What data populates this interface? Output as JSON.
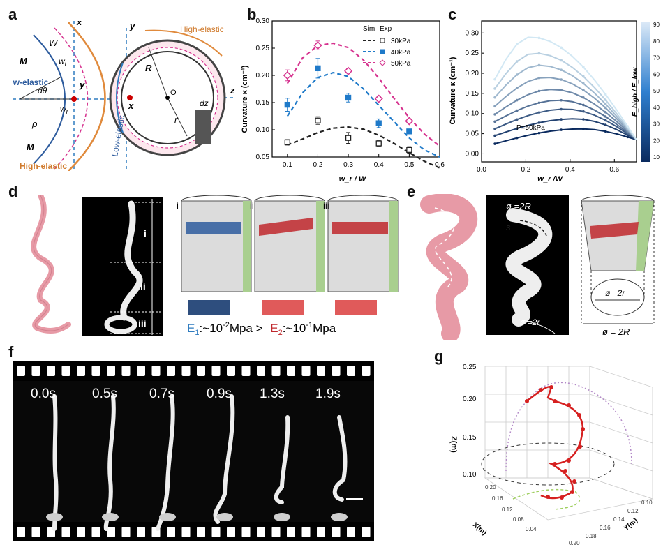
{
  "panel_labels": [
    "a",
    "b",
    "c",
    "d",
    "e",
    "f",
    "g"
  ],
  "panel_a": {
    "left": {
      "x": "x",
      "y": "y",
      "z": "z",
      "W": "W",
      "wl": "w",
      "wl_sub": "l",
      "wr": "w",
      "wr_sub": "r",
      "M_top": "M",
      "M_bottom": "M",
      "dtheta": "dθ",
      "rho": "ρ",
      "low": "Low-elastic",
      "high": "High-elastic"
    },
    "right": {
      "x": "x",
      "y": "y",
      "z": "z",
      "R": "R",
      "O": "O",
      "r": "r",
      "dz": "dz",
      "low": "Low-elastic",
      "high": "High-elastic"
    }
  },
  "panel_d": {
    "segments": [
      "i",
      "ii",
      "iii"
    ],
    "strips": [
      "i",
      "ii",
      "iii"
    ],
    "equation": {
      "e1": "E",
      "e1_sub": "1",
      "e1_val": ":~10",
      "e1_exp": "-2",
      "e1_unit": "Mpa >",
      "e2": "E",
      "e2_sub": "2",
      "e2_val": ":~10",
      "e2_exp": "-1",
      "e2_unit": "Mpa"
    }
  },
  "panel_e": {
    "s1": "s",
    "s2": "s",
    "d_top": "ø =2R",
    "d_bot": "ø =2r",
    "cone_inner": "ø =2r",
    "cone_outer": "ø = 2R"
  },
  "panel_f": {
    "times": [
      "0.0s",
      "0.5s",
      "0.7s",
      "0.9s",
      "1.3s",
      "1.9s"
    ]
  },
  "panel_g": {
    "zlabel": "Z(m)",
    "xlabel": "X(m)",
    "ylabel": "Y(m)",
    "zticks": [
      "0.25",
      "0.20",
      "0.15",
      "0.10"
    ],
    "xticks": [
      "0.20",
      "0.16",
      "0.12",
      "0.08",
      "0.04"
    ],
    "yticks": [
      "0.10",
      "0.12",
      "0.14",
      "0.16",
      "0.18",
      "0.20"
    ]
  },
  "chart_data": [
    {
      "type": "line",
      "panel": "b",
      "xlabel": "w_r / W",
      "ylabel": "Curvature κ (cm⁻¹)",
      "xlim": [
        0.05,
        0.6
      ],
      "ylim": [
        0.05,
        0.3
      ],
      "xticks": [
        0.1,
        0.2,
        0.3,
        0.4,
        0.5,
        0.6
      ],
      "yticks": [
        0.05,
        0.1,
        0.15,
        0.2,
        0.25,
        0.3
      ],
      "xtick_labels": [
        "0.1",
        "0.2",
        "0.3",
        "0.4",
        "0.5",
        "0.6"
      ],
      "ytick_labels": [
        "0.05",
        "0.10",
        "0.15",
        "0.20",
        "0.25",
        "0.30"
      ],
      "legend": {
        "sim": "Sim",
        "exp": "Exp",
        "position": "top-right"
      },
      "series": [
        {
          "name": "30kPa",
          "color": "#222222",
          "marker": "square-open",
          "sim_x": [
            0.1,
            0.15,
            0.2,
            0.25,
            0.3,
            0.35,
            0.4,
            0.45,
            0.5,
            0.55,
            0.6
          ],
          "sim_y": [
            0.072,
            0.083,
            0.095,
            0.103,
            0.105,
            0.101,
            0.09,
            0.075,
            0.058,
            0.042,
            0.03
          ],
          "exp_x": [
            0.1,
            0.2,
            0.3,
            0.4,
            0.5
          ],
          "exp_y": [
            0.077,
            0.117,
            0.085,
            0.075,
            0.063
          ],
          "err": [
            0.005,
            0.007,
            0.01,
            0.005,
            0.006
          ]
        },
        {
          "name": "40kPa",
          "color": "#1f7ac9",
          "marker": "square-filled",
          "sim_x": [
            0.1,
            0.15,
            0.2,
            0.25,
            0.3,
            0.35,
            0.4,
            0.45,
            0.5,
            0.55,
            0.6
          ],
          "sim_y": [
            0.125,
            0.168,
            0.196,
            0.205,
            0.198,
            0.175,
            0.145,
            0.115,
            0.085,
            0.063,
            0.05
          ],
          "exp_x": [
            0.1,
            0.2,
            0.3,
            0.4,
            0.5
          ],
          "exp_y": [
            0.146,
            0.213,
            0.159,
            0.112,
            0.097
          ],
          "err": [
            0.012,
            0.018,
            0.008,
            0.008,
            0.004
          ]
        },
        {
          "name": "50kPa",
          "color": "#d6338f",
          "marker": "diamond-open",
          "sim_x": [
            0.1,
            0.15,
            0.2,
            0.25,
            0.3,
            0.35,
            0.4,
            0.45,
            0.5,
            0.55,
            0.6
          ],
          "sim_y": [
            0.185,
            0.232,
            0.255,
            0.259,
            0.251,
            0.228,
            0.195,
            0.158,
            0.122,
            0.092,
            0.07
          ],
          "exp_x": [
            0.1,
            0.2,
            0.3,
            0.4,
            0.5
          ],
          "exp_y": [
            0.2,
            0.255,
            0.208,
            0.157,
            0.116
          ],
          "err": [
            0.01,
            0.008,
            0.004,
            0.004,
            0.004
          ]
        }
      ]
    },
    {
      "type": "line",
      "panel": "c",
      "xlabel": "w_r /W",
      "ylabel": "Curvature κ (cm⁻¹)",
      "annotation": "P=50kPa",
      "xlim": [
        0.0,
        0.7
      ],
      "ylim": [
        -0.02,
        0.33
      ],
      "xticks": [
        0.0,
        0.2,
        0.4,
        0.6
      ],
      "yticks": [
        0.0,
        0.05,
        0.1,
        0.15,
        0.2,
        0.25,
        0.3
      ],
      "xtick_labels": [
        "0.0",
        "0.2",
        "0.4",
        "0.6"
      ],
      "ytick_labels": [
        "0.00",
        "0.05",
        "0.10",
        "0.15",
        "0.20",
        "0.25",
        "0.30"
      ],
      "colorbar": {
        "label": "E_high / E_low",
        "ticks": [
          "10",
          "20",
          "30",
          "40",
          "50",
          "60",
          "70",
          "80",
          "90"
        ]
      },
      "x": [
        0.06,
        0.11,
        0.16,
        0.21,
        0.26,
        0.31,
        0.36,
        0.41,
        0.46,
        0.51,
        0.56,
        0.61,
        0.66,
        0.7
      ],
      "series": [
        {
          "ratio": 10,
          "peak_x": 0.45,
          "peak_y": 0.062,
          "start_y": 0.025
        },
        {
          "ratio": 20,
          "peak_x": 0.42,
          "peak_y": 0.087,
          "start_y": 0.045
        },
        {
          "ratio": 30,
          "peak_x": 0.38,
          "peak_y": 0.111,
          "start_y": 0.062
        },
        {
          "ratio": 40,
          "peak_x": 0.35,
          "peak_y": 0.133,
          "start_y": 0.08
        },
        {
          "ratio": 50,
          "peak_x": 0.32,
          "peak_y": 0.16,
          "start_y": 0.098
        },
        {
          "ratio": 60,
          "peak_x": 0.29,
          "peak_y": 0.19,
          "start_y": 0.118
        },
        {
          "ratio": 70,
          "peak_x": 0.26,
          "peak_y": 0.22,
          "start_y": 0.14
        },
        {
          "ratio": 80,
          "peak_x": 0.24,
          "peak_y": 0.25,
          "start_y": 0.162
        },
        {
          "ratio": 90,
          "peak_x": 0.22,
          "peak_y": 0.29,
          "start_y": 0.185
        }
      ],
      "end_y": 0.035
    }
  ]
}
